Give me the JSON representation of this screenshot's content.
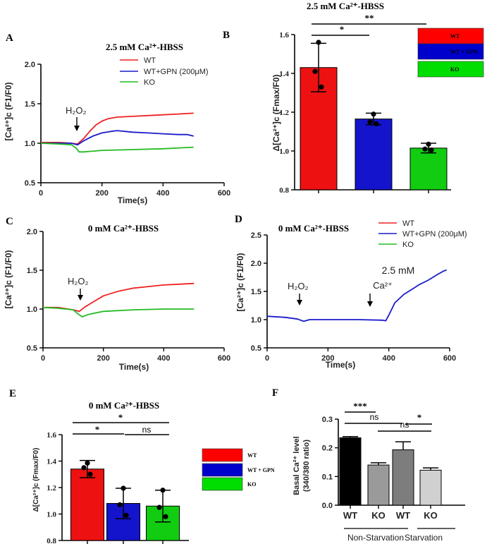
{
  "colors": {
    "wt": "#ee2222",
    "gpn": "#1a1acc",
    "ko": "#22bb22",
    "black": "#000000",
    "gray1": "#9a9a9a",
    "gray2": "#7d7d7d",
    "gray3": "#d0d0d0"
  },
  "chart_data": [
    {
      "id": "A",
      "letter": "A",
      "type": "line",
      "title": "2.5 mM Ca²⁺-HBSS",
      "xlabel": "Time(s)",
      "ylabel": "[Ca²⁺]c (F1/F0)",
      "xlim": [
        0,
        600
      ],
      "ylim": [
        0.5,
        2.0
      ],
      "xticks": [
        0,
        200,
        400,
        600
      ],
      "yticks": [
        0.5,
        1.0,
        1.5,
        2.0
      ],
      "ytick_labels": [
        "0.5",
        "1.0",
        "1.5",
        "2.0"
      ],
      "annotation": "H₂O₂",
      "annotation_x": 120,
      "legend": [
        "WT",
        "WT+GPN (200μM)",
        "KO"
      ],
      "series": [
        {
          "name": "WT",
          "color": "#ee2222",
          "x": [
            0,
            60,
            100,
            120,
            140,
            160,
            180,
            200,
            220,
            250,
            300,
            350,
            400,
            450,
            500
          ],
          "y": [
            1.01,
            1.01,
            1.0,
            0.99,
            1.06,
            1.15,
            1.23,
            1.28,
            1.31,
            1.33,
            1.34,
            1.35,
            1.36,
            1.37,
            1.38
          ]
        },
        {
          "name": "WT+GPN (200μM)",
          "color": "#1a1acc",
          "x": [
            0,
            60,
            100,
            120,
            140,
            170,
            200,
            230,
            250,
            300,
            350,
            400,
            450,
            480,
            500
          ],
          "y": [
            1.0,
            1.0,
            1.0,
            0.98,
            1.03,
            1.09,
            1.13,
            1.15,
            1.16,
            1.14,
            1.13,
            1.12,
            1.11,
            1.11,
            1.09
          ]
        },
        {
          "name": "KO",
          "color": "#22bb22",
          "x": [
            0,
            60,
            100,
            115,
            125,
            140,
            200,
            300,
            400,
            500
          ],
          "y": [
            1.0,
            0.99,
            0.98,
            0.94,
            0.89,
            0.89,
            0.91,
            0.92,
            0.93,
            0.95
          ]
        }
      ]
    },
    {
      "id": "B",
      "letter": "B",
      "type": "bar",
      "title": "2.5 mM Ca²⁺-HBSS",
      "ylabel": "Δ[Ca²⁺]c (Fmax/F0)",
      "ylim": [
        0.8,
        1.6
      ],
      "yticks": [
        0.8,
        1.0,
        1.2,
        1.4,
        1.6
      ],
      "ytick_labels": [
        "0.8",
        "1.0",
        "1.2",
        "1.4",
        "1.6"
      ],
      "categories": [
        "WT",
        "WT + GPN",
        "KO"
      ],
      "values": [
        1.43,
        1.165,
        1.015
      ],
      "errors": [
        0.125,
        0.03,
        0.025
      ],
      "points": [
        [
          1.56,
          1.41,
          1.33
        ],
        [
          1.19,
          1.15,
          1.14
        ],
        [
          1.035,
          1.01,
          1.005
        ]
      ],
      "colors": [
        "#ee1111",
        "#1414cc",
        "#11cc11"
      ],
      "significance": [
        {
          "from": 0,
          "to": 1,
          "label": "*"
        },
        {
          "from": 0,
          "to": 2,
          "label": "**"
        }
      ]
    },
    {
      "id": "C",
      "letter": "C",
      "type": "line",
      "title": "0 mM Ca²⁺-HBSS",
      "xlabel": "Time(s)",
      "ylabel": "[Ca²⁺]c (F1/F0)",
      "xlim": [
        0,
        600
      ],
      "ylim": [
        0.5,
        2.0
      ],
      "xticks": [
        0,
        200,
        400,
        600
      ],
      "yticks": [
        0.5,
        1.0,
        1.5,
        2.0
      ],
      "ytick_labels": [
        "0.5",
        "1.0",
        "1.5",
        "2.0"
      ],
      "annotation": "H₂O₂",
      "annotation_x": 125,
      "series": [
        {
          "name": "WT",
          "color": "#ee2222",
          "x": [
            0,
            50,
            100,
            120,
            140,
            170,
            200,
            250,
            300,
            350,
            400,
            450,
            500
          ],
          "y": [
            1.02,
            1.02,
            0.99,
            0.97,
            1.03,
            1.1,
            1.17,
            1.23,
            1.27,
            1.29,
            1.31,
            1.32,
            1.33
          ]
        },
        {
          "name": "KO",
          "color": "#22bb22",
          "x": [
            0,
            50,
            100,
            115,
            130,
            150,
            200,
            300,
            400,
            500
          ],
          "y": [
            1.02,
            1.01,
            0.99,
            0.94,
            0.9,
            0.93,
            0.97,
            0.99,
            1.0,
            1.0
          ]
        }
      ]
    },
    {
      "id": "D",
      "letter": "D",
      "type": "line",
      "title": "0 mM Ca²⁺-HBSS",
      "xlabel": "Time(s)",
      "ylabel": "[Ca²⁺]c (F1/F0)",
      "xlim": [
        0,
        600
      ],
      "ylim": [
        0.5,
        2.5
      ],
      "xticks": [
        0,
        200,
        400,
        600
      ],
      "yticks": [
        0.5,
        1.0,
        1.5,
        2.0,
        2.5
      ],
      "ytick_labels": [
        "0.5",
        "1.0",
        "1.5",
        "2.0",
        "2.5"
      ],
      "annotation": "H₂O₂",
      "annotation_x": 115,
      "annotation2_line1": "2.5 mM",
      "annotation2_line2": "Ca²⁺",
      "annotation2_x": 390,
      "legend": [
        "WT",
        "WT+GPN (200μM)",
        "KO"
      ],
      "series": [
        {
          "name": "WT+GPN (200μM)",
          "color": "#1a1acc",
          "x": [
            0,
            60,
            100,
            120,
            140,
            200,
            300,
            380,
            390,
            400,
            420,
            450,
            480,
            500,
            530,
            560,
            580,
            590
          ],
          "y": [
            1.06,
            1.04,
            1.01,
            0.97,
            1.0,
            1.0,
            1.0,
            0.99,
            0.98,
            1.08,
            1.3,
            1.45,
            1.55,
            1.62,
            1.7,
            1.8,
            1.86,
            1.88
          ]
        }
      ]
    },
    {
      "id": "E",
      "letter": "E",
      "type": "bar",
      "title": "0 mM Ca²⁺-HBSS",
      "ylabel": "Δ[Ca²⁺]c (Fmax/F0)",
      "ylim": [
        0.8,
        1.6
      ],
      "yticks": [
        0.8,
        1.0,
        1.2,
        1.4,
        1.6
      ],
      "ytick_labels": [
        "0.8",
        "1.0",
        "1.2",
        "1.4",
        "1.6"
      ],
      "categories": [
        "WT",
        "WT + GPN",
        "KO"
      ],
      "values": [
        1.34,
        1.08,
        1.06
      ],
      "errors": [
        0.065,
        0.115,
        0.12
      ],
      "points": [
        [
          1.385,
          1.35,
          1.3
        ],
        [
          1.195,
          1.07,
          0.99
        ],
        [
          1.18,
          1.05,
          0.98
        ]
      ],
      "colors": [
        "#ee1111",
        "#1414cc",
        "#11cc11"
      ],
      "significance": [
        {
          "from": 0,
          "to": 1,
          "label": "*"
        },
        {
          "from": 0,
          "to": 2,
          "label": "*"
        },
        {
          "from": 1,
          "to": 2,
          "label": "ns"
        }
      ]
    },
    {
      "id": "F",
      "letter": "F",
      "type": "bar",
      "ylabel": "Basal Ca²⁺ level (340/380 ratio)",
      "ylabel_line1": "Basal Ca²⁺ level",
      "ylabel_line2": "(340/380 ratio)",
      "ylim": [
        0.0,
        0.3
      ],
      "yticks": [
        0.0,
        0.1,
        0.2,
        0.3
      ],
      "ytick_labels": [
        "0.0",
        "0.1",
        "0.2",
        "0.3"
      ],
      "categories": [
        "WT",
        "KO",
        "WT",
        "KO"
      ],
      "groups": [
        "Non-Starvation",
        "Starvation"
      ],
      "values": [
        0.235,
        0.14,
        0.193,
        0.122
      ],
      "errors": [
        0.004,
        0.008,
        0.028,
        0.008
      ],
      "colors": [
        "#000000",
        "#9a9a9a",
        "#7d7d7d",
        "#d0d0d0"
      ],
      "significance": [
        {
          "from": 0,
          "to": 1,
          "label": "***"
        },
        {
          "from": 0,
          "to": 2,
          "label": "ns"
        },
        {
          "from": 1,
          "to": 3,
          "label": "ns"
        },
        {
          "from": 2,
          "to": 3,
          "label": "*"
        }
      ]
    }
  ]
}
